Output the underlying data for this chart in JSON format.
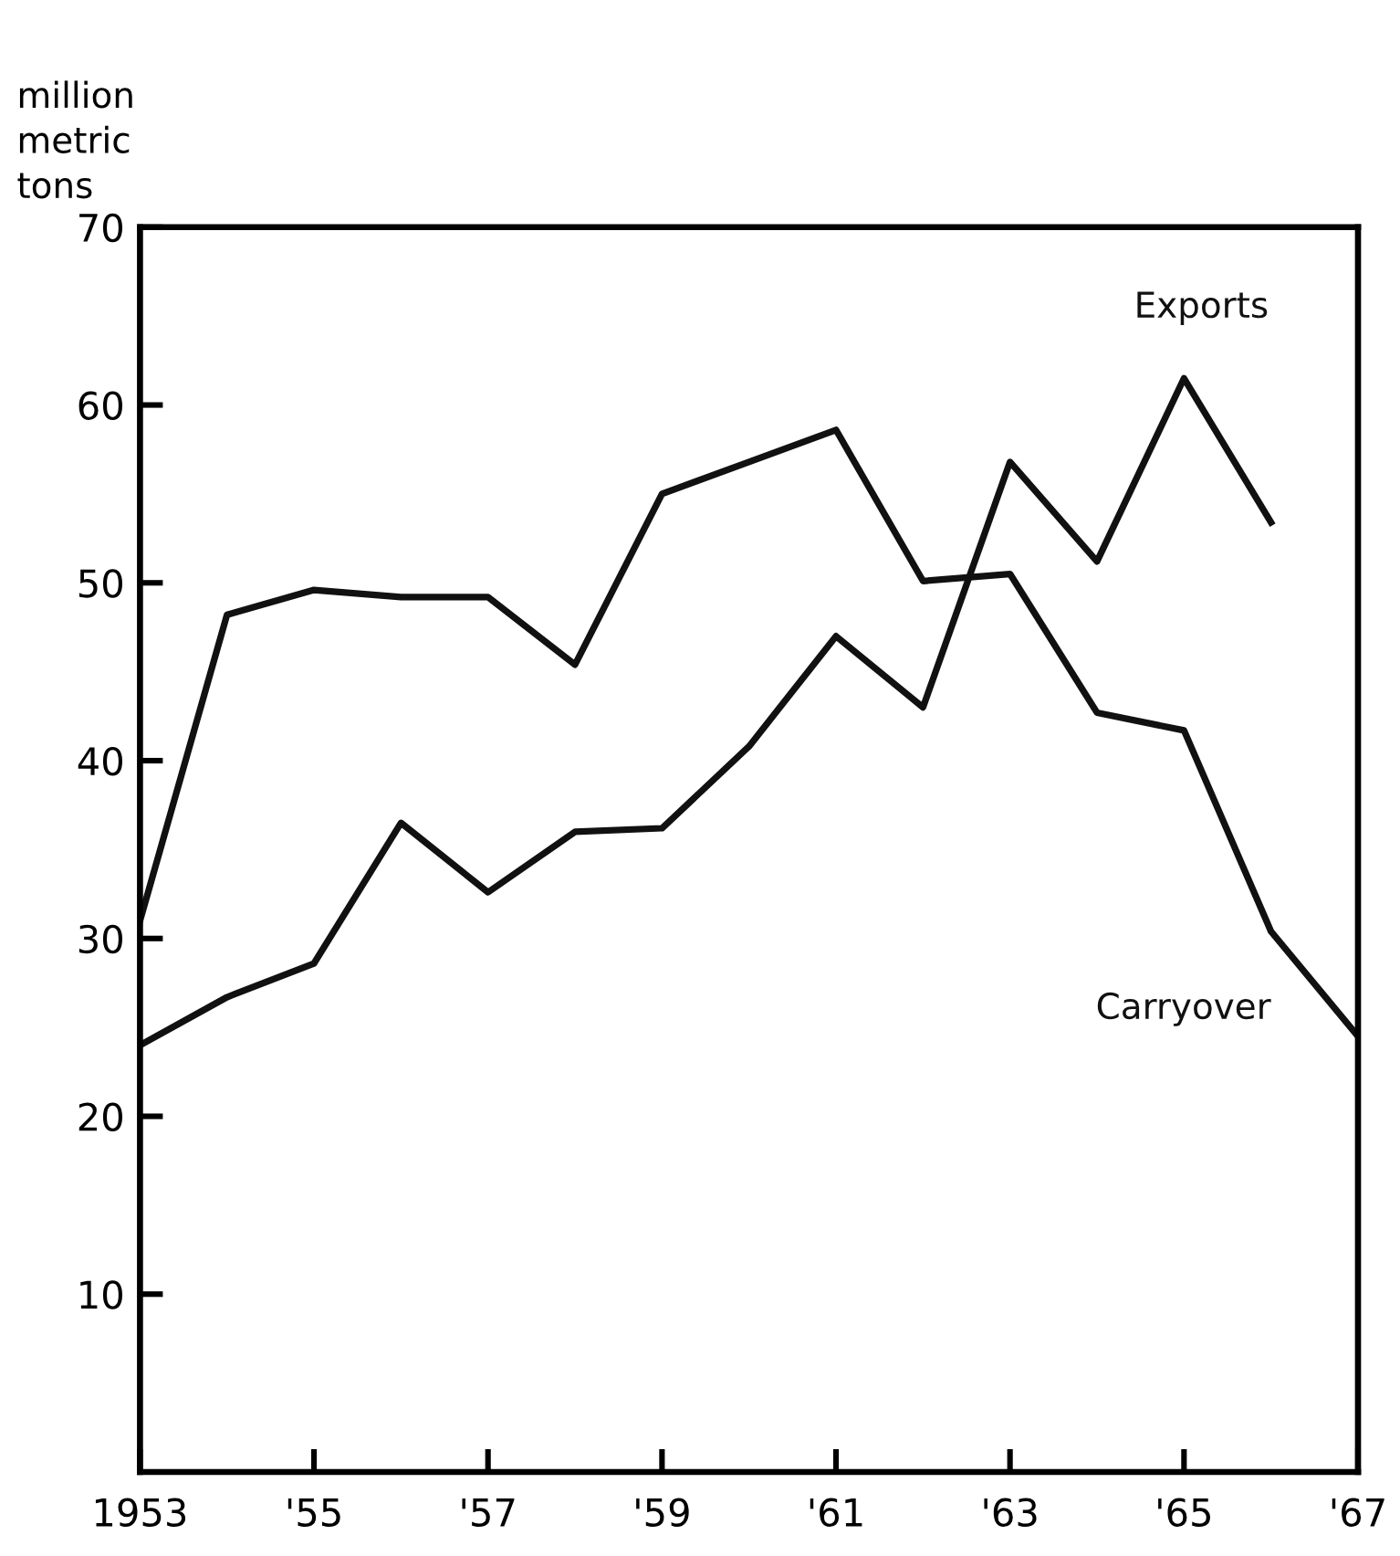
{
  "chart_data": {
    "type": "line",
    "ylabel": "million\nmetric\ntons",
    "x": [
      1953,
      1954,
      1955,
      1956,
      1957,
      1958,
      1959,
      1960,
      1961,
      1962,
      1963,
      1964,
      1965,
      1966,
      1967
    ],
    "series": [
      {
        "name": "Exports",
        "color": "#111111",
        "values": [
          24.0,
          26.7,
          28.6,
          36.5,
          32.6,
          36.0,
          36.2,
          40.8,
          47.0,
          43.0,
          56.8,
          51.2,
          61.5,
          53.4,
          null
        ]
      },
      {
        "name": "Carryover",
        "color": "#111111",
        "values": [
          31.0,
          48.2,
          49.6,
          49.2,
          49.2,
          45.4,
          55.0,
          56.8,
          58.6,
          50.1,
          50.5,
          42.7,
          41.7,
          30.4,
          24.5
        ]
      }
    ],
    "xlim": [
      1953,
      1967
    ],
    "ylim": [
      0,
      70
    ],
    "xticks": [
      {
        "value": 1953,
        "label": "1953"
      },
      {
        "value": 1955,
        "label": "'55"
      },
      {
        "value": 1957,
        "label": "'57"
      },
      {
        "value": 1959,
        "label": "'59"
      },
      {
        "value": 1961,
        "label": "'61"
      },
      {
        "value": 1963,
        "label": "'63"
      },
      {
        "value": 1965,
        "label": "'65"
      },
      {
        "value": 1967,
        "label": "'67"
      }
    ],
    "yticks": [
      10,
      20,
      30,
      40,
      50,
      60,
      70
    ],
    "grid": false,
    "legend": false,
    "marker": "none",
    "line_style": "solid"
  }
}
